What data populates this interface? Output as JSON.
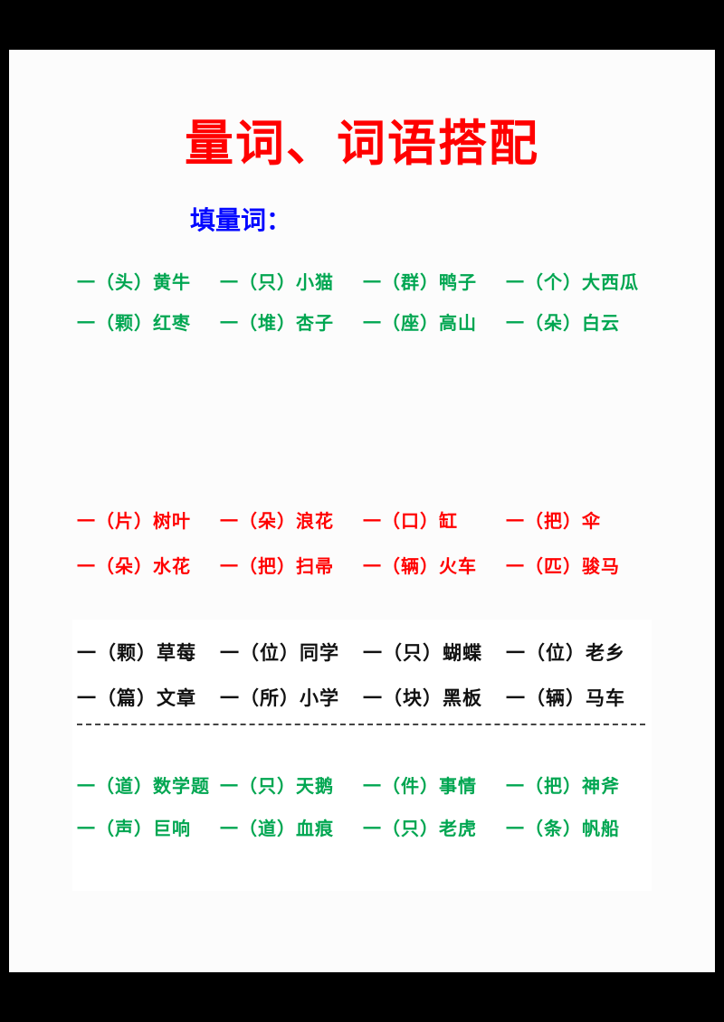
{
  "title": "量词、词语搭配",
  "subtitle": "填量词：",
  "colors": {
    "title_red": "#ff0000",
    "subtitle_blue": "#0408ff",
    "green": "#00a651",
    "red": "#ff0000",
    "black": "#111111",
    "page_bg": "#fcfcfc",
    "card_bg": "#ffffff",
    "outer_bg": "#000000"
  },
  "green_top": {
    "rows": [
      [
        "一（头）黄牛",
        "一（只）小猫",
        "一（群）鸭子",
        "一（个）大西瓜"
      ],
      [
        "一（颗）红枣",
        "一（堆）杏子",
        "一（座）高山",
        "一（朵）白云"
      ]
    ]
  },
  "red_middle": {
    "rows": [
      [
        "一（片）树叶",
        "一（朵）浪花",
        "一（口）缸",
        "一（把）伞"
      ],
      [
        "一（朵）水花",
        "一（把）扫帚",
        "一（辆）火车",
        "一（匹）骏马"
      ]
    ]
  },
  "black_block": {
    "rows": [
      [
        "一（颗）草莓",
        "一（位）同学",
        "一（只）蝴蝶",
        "一（位）老乡"
      ],
      [
        "一（篇）文章",
        "一（所）小学",
        "一（块）黑板",
        "一（辆）马车"
      ]
    ]
  },
  "green_bottom": {
    "rows": [
      [
        "一（道）数学题",
        "一（只）天鹅",
        "一（件）事情",
        "一（把）神斧"
      ],
      [
        "一（声）巨响",
        "一（道）血痕",
        "一（只）老虎",
        "一（条）帆船"
      ]
    ]
  }
}
